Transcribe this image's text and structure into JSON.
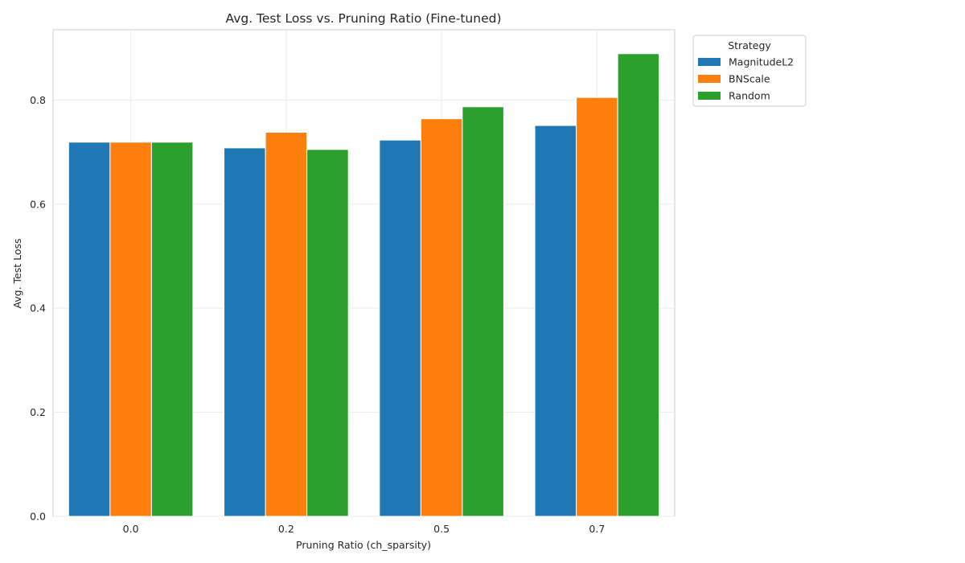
{
  "chart_data": {
    "type": "bar",
    "title": "Avg. Test Loss vs. Pruning Ratio (Fine-tuned)",
    "xlabel": "Pruning Ratio (ch_sparsity)",
    "ylabel": "Avg. Test Loss",
    "categories": [
      "0.0",
      "0.2",
      "0.5",
      "0.7"
    ],
    "ylim": [
      0,
      0.935
    ],
    "yticks": [
      0.0,
      0.2,
      0.4,
      0.6,
      0.8
    ],
    "ytick_labels": [
      "0.0",
      "0.2",
      "0.4",
      "0.6",
      "0.8"
    ],
    "grid": true,
    "legend": {
      "title": "Strategy",
      "placement": "outside-top-right"
    },
    "series": [
      {
        "name": "MagnitudeL2",
        "color": "#1f77b4",
        "values": [
          0.719,
          0.708,
          0.723,
          0.751
        ]
      },
      {
        "name": "BNScale",
        "color": "#ff7f0e",
        "values": [
          0.719,
          0.738,
          0.764,
          0.805
        ]
      },
      {
        "name": "Random",
        "color": "#2ca02c",
        "values": [
          0.719,
          0.705,
          0.787,
          0.889
        ]
      }
    ]
  }
}
